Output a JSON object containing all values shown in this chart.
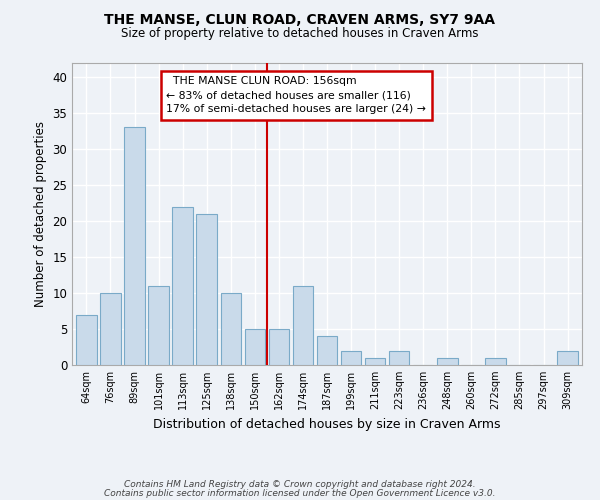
{
  "title": "THE MANSE, CLUN ROAD, CRAVEN ARMS, SY7 9AA",
  "subtitle": "Size of property relative to detached houses in Craven Arms",
  "xlabel": "Distribution of detached houses by size in Craven Arms",
  "ylabel": "Number of detached properties",
  "footnote1": "Contains HM Land Registry data © Crown copyright and database right 2024.",
  "footnote2": "Contains public sector information licensed under the Open Government Licence v3.0.",
  "categories": [
    "64sqm",
    "76sqm",
    "89sqm",
    "101sqm",
    "113sqm",
    "125sqm",
    "138sqm",
    "150sqm",
    "162sqm",
    "174sqm",
    "187sqm",
    "199sqm",
    "211sqm",
    "223sqm",
    "236sqm",
    "248sqm",
    "260sqm",
    "272sqm",
    "285sqm",
    "297sqm",
    "309sqm"
  ],
  "values": [
    7,
    10,
    33,
    11,
    22,
    21,
    10,
    5,
    5,
    11,
    4,
    2,
    1,
    2,
    0,
    1,
    0,
    1,
    0,
    0,
    2
  ],
  "bar_color": "#c9daea",
  "bar_edge_color": "#7aaac8",
  "annotation_text": "  THE MANSE CLUN ROAD: 156sqm\n← 83% of detached houses are smaller (116)\n17% of semi-detached houses are larger (24) →",
  "annotation_box_color": "#ffffff",
  "annotation_box_edge": "#cc0000",
  "vline_color": "#cc0000",
  "ylim": [
    0,
    42
  ],
  "yticks": [
    0,
    5,
    10,
    15,
    20,
    25,
    30,
    35,
    40
  ],
  "background_color": "#eef2f7",
  "grid_color": "#ffffff"
}
